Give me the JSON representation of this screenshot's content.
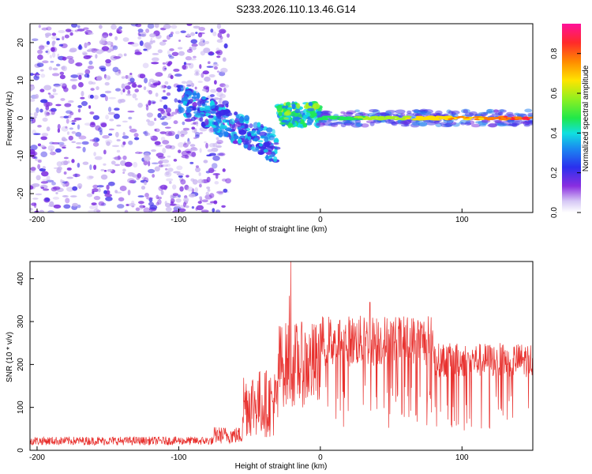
{
  "figure": {
    "title": "S233.2026.110.13.46.G14"
  },
  "chart_data": [
    {
      "type": "heatmap",
      "name": "spectrogram",
      "xlabel": "Height of straight line (km)",
      "ylabel": "Frequency (Hz)",
      "xlim": [
        -205,
        150
      ],
      "ylim": [
        -25,
        25
      ],
      "xticks": [
        -200,
        -100,
        0,
        100
      ],
      "yticks": [
        -20,
        -10,
        0,
        10,
        20
      ],
      "colorbar": {
        "label": "Normalized spectral amplitude",
        "range": [
          0,
          0.95
        ],
        "ticks": [
          0.0,
          0.2,
          0.4,
          0.6,
          0.8
        ]
      },
      "description_regions": [
        {
          "x_range": [
            -205,
            -65
          ],
          "amplitude": [
            0.05,
            0.25
          ],
          "freq_spread": [
            -25,
            25
          ]
        },
        {
          "x_range": [
            -100,
            -30
          ],
          "amplitude": [
            0.2,
            0.45
          ],
          "freq_center_from": 5,
          "freq_center_to": -8
        },
        {
          "x_range": [
            -30,
            0
          ],
          "amplitude": [
            0.3,
            0.6
          ],
          "freq_center": 1
        },
        {
          "x_range": [
            0,
            150
          ],
          "amplitude": [
            0.5,
            0.9
          ],
          "freq_center": 0
        }
      ]
    },
    {
      "type": "line",
      "name": "snr",
      "xlabel": "Height of straight line (km)",
      "ylabel": "SNR (10 * v/v)",
      "xlim": [
        -205,
        150
      ],
      "ylim": [
        0,
        440
      ],
      "xticks": [
        -200,
        -100,
        0,
        100
      ],
      "yticks": [
        0,
        100,
        200,
        300,
        400
      ],
      "color": "#e8312e",
      "segments": [
        {
          "x_range": [
            -205,
            -75
          ],
          "mean": 22,
          "noise": 10
        },
        {
          "x_range": [
            -75,
            -55
          ],
          "mean": 35,
          "noise": 20
        },
        {
          "x_range": [
            -55,
            -30
          ],
          "mean": 110,
          "noise": 80
        },
        {
          "x_range": [
            -30,
            0
          ],
          "mean": 200,
          "noise": 100
        },
        {
          "x_range": [
            0,
            80
          ],
          "mean": 255,
          "noise": 60
        },
        {
          "x_range": [
            80,
            150
          ],
          "mean": 210,
          "noise": 40
        }
      ],
      "peaks": [
        {
          "x": -21,
          "y": 440
        },
        {
          "x": -22,
          "y": 360
        },
        {
          "x": 35,
          "y": 345
        }
      ]
    }
  ],
  "colors": {
    "axis": "#000000",
    "line": "#e8312e",
    "colormap": [
      "#ffffff",
      "#c8b4f0",
      "#7a2be0",
      "#3b2be8",
      "#1f7ff0",
      "#10d8e8",
      "#20e85a",
      "#a8f020",
      "#ffe000",
      "#ff8000",
      "#ff2040",
      "#ff1090"
    ]
  }
}
